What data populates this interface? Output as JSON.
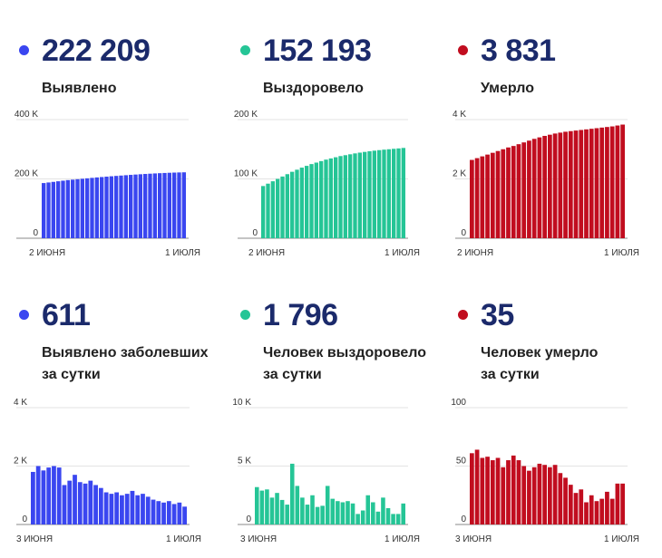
{
  "colors": {
    "blue": "#3a46f0",
    "green": "#25c596",
    "red": "#c10d1f"
  },
  "panels": [
    {
      "value": "222 209",
      "label1": "Выявлено",
      "label2": "",
      "color": "blue",
      "chart_data": {
        "type": "bar",
        "x_start_label": "2 ИЮНЯ",
        "x_end_label": "1 ИЮЛЯ",
        "y_ticks": [
          "0",
          "200 K",
          "400 K"
        ],
        "ylim": [
          0,
          400000
        ],
        "values": [
          186000,
          188000,
          190000,
          192000,
          194000,
          196000,
          197500,
          199000,
          200500,
          202000,
          203500,
          205000,
          206300,
          207600,
          208900,
          210100,
          211300,
          212500,
          213600,
          214700,
          215700,
          216700,
          217600,
          218500,
          219300,
          220000,
          220700,
          221300,
          221800,
          222209
        ]
      }
    },
    {
      "value": "152 193",
      "label1": "Выздоровело",
      "label2": "",
      "color": "green",
      "chart_data": {
        "type": "bar",
        "x_start_label": "2 ИЮНЯ",
        "x_end_label": "1 ИЮЛЯ",
        "y_ticks": [
          "0",
          "100 K",
          "200 K"
        ],
        "ylim": [
          0,
          200000
        ],
        "values": [
          88000,
          92000,
          96000,
          100000,
          104000,
          108000,
          112000,
          115500,
          119000,
          122000,
          125000,
          127500,
          130000,
          132500,
          134500,
          136500,
          138500,
          140000,
          141500,
          143000,
          144300,
          145500,
          146600,
          147600,
          148500,
          149300,
          150000,
          150700,
          151400,
          152193
        ]
      }
    },
    {
      "value": "3 831",
      "label1": "Умерло",
      "label2": "",
      "color": "red",
      "chart_data": {
        "type": "bar",
        "x_start_label": "2 ИЮНЯ",
        "x_end_label": "1 ИЮЛЯ",
        "y_ticks": [
          "0",
          "2 K",
          "4 K"
        ],
        "ylim": [
          0,
          4000
        ],
        "values": [
          2640,
          2700,
          2760,
          2820,
          2880,
          2940,
          3000,
          3060,
          3110,
          3170,
          3230,
          3290,
          3350,
          3400,
          3450,
          3490,
          3530,
          3560,
          3590,
          3610,
          3630,
          3650,
          3670,
          3690,
          3710,
          3730,
          3750,
          3770,
          3800,
          3831
        ]
      }
    },
    {
      "value": "611",
      "label1": "Выявлено заболевших",
      "label2": "за сутки",
      "color": "blue",
      "chart_data": {
        "type": "bar",
        "x_start_label": "3 ИЮНЯ",
        "x_end_label": "1 ИЮЛЯ",
        "y_ticks": [
          "0",
          "2 K",
          "4 K"
        ],
        "ylim": [
          0,
          4000
        ],
        "values": [
          1800,
          2000,
          1850,
          1950,
          2000,
          1950,
          1350,
          1500,
          1700,
          1450,
          1400,
          1500,
          1350,
          1250,
          1100,
          1050,
          1100,
          1000,
          1050,
          1150,
          1000,
          1050,
          950,
          850,
          800,
          750,
          800,
          700,
          750,
          611
        ]
      }
    },
    {
      "value": "1 796",
      "label1": "Человек выздоровело",
      "label2": "за сутки",
      "color": "green",
      "chart_data": {
        "type": "bar",
        "x_start_label": "3 ИЮНЯ",
        "x_end_label": "1 ИЮЛЯ",
        "y_ticks": [
          "0",
          "5 K",
          "10 K"
        ],
        "ylim": [
          0,
          10000
        ],
        "values": [
          3200,
          2900,
          3000,
          2300,
          2700,
          2100,
          1700,
          5200,
          3300,
          2300,
          1700,
          2500,
          1500,
          1600,
          3300,
          2200,
          2000,
          1900,
          2000,
          1800,
          900,
          1200,
          2500,
          1900,
          1100,
          2300,
          1400,
          900,
          900,
          1796
        ]
      }
    },
    {
      "value": "35",
      "label1": "Человек умерло",
      "label2": "за сутки",
      "color": "red",
      "chart_data": {
        "type": "bar",
        "x_start_label": "3 ИЮНЯ",
        "x_end_label": "1 ИЮЛЯ",
        "y_ticks": [
          "0",
          "50",
          "100"
        ],
        "ylim": [
          0,
          100
        ],
        "values": [
          61,
          64,
          57,
          58,
          55,
          57,
          49,
          55,
          59,
          55,
          50,
          46,
          49,
          52,
          51,
          49,
          51,
          44,
          40,
          34,
          27,
          30,
          19,
          25,
          20,
          22,
          28,
          22,
          35,
          35
        ]
      }
    }
  ]
}
